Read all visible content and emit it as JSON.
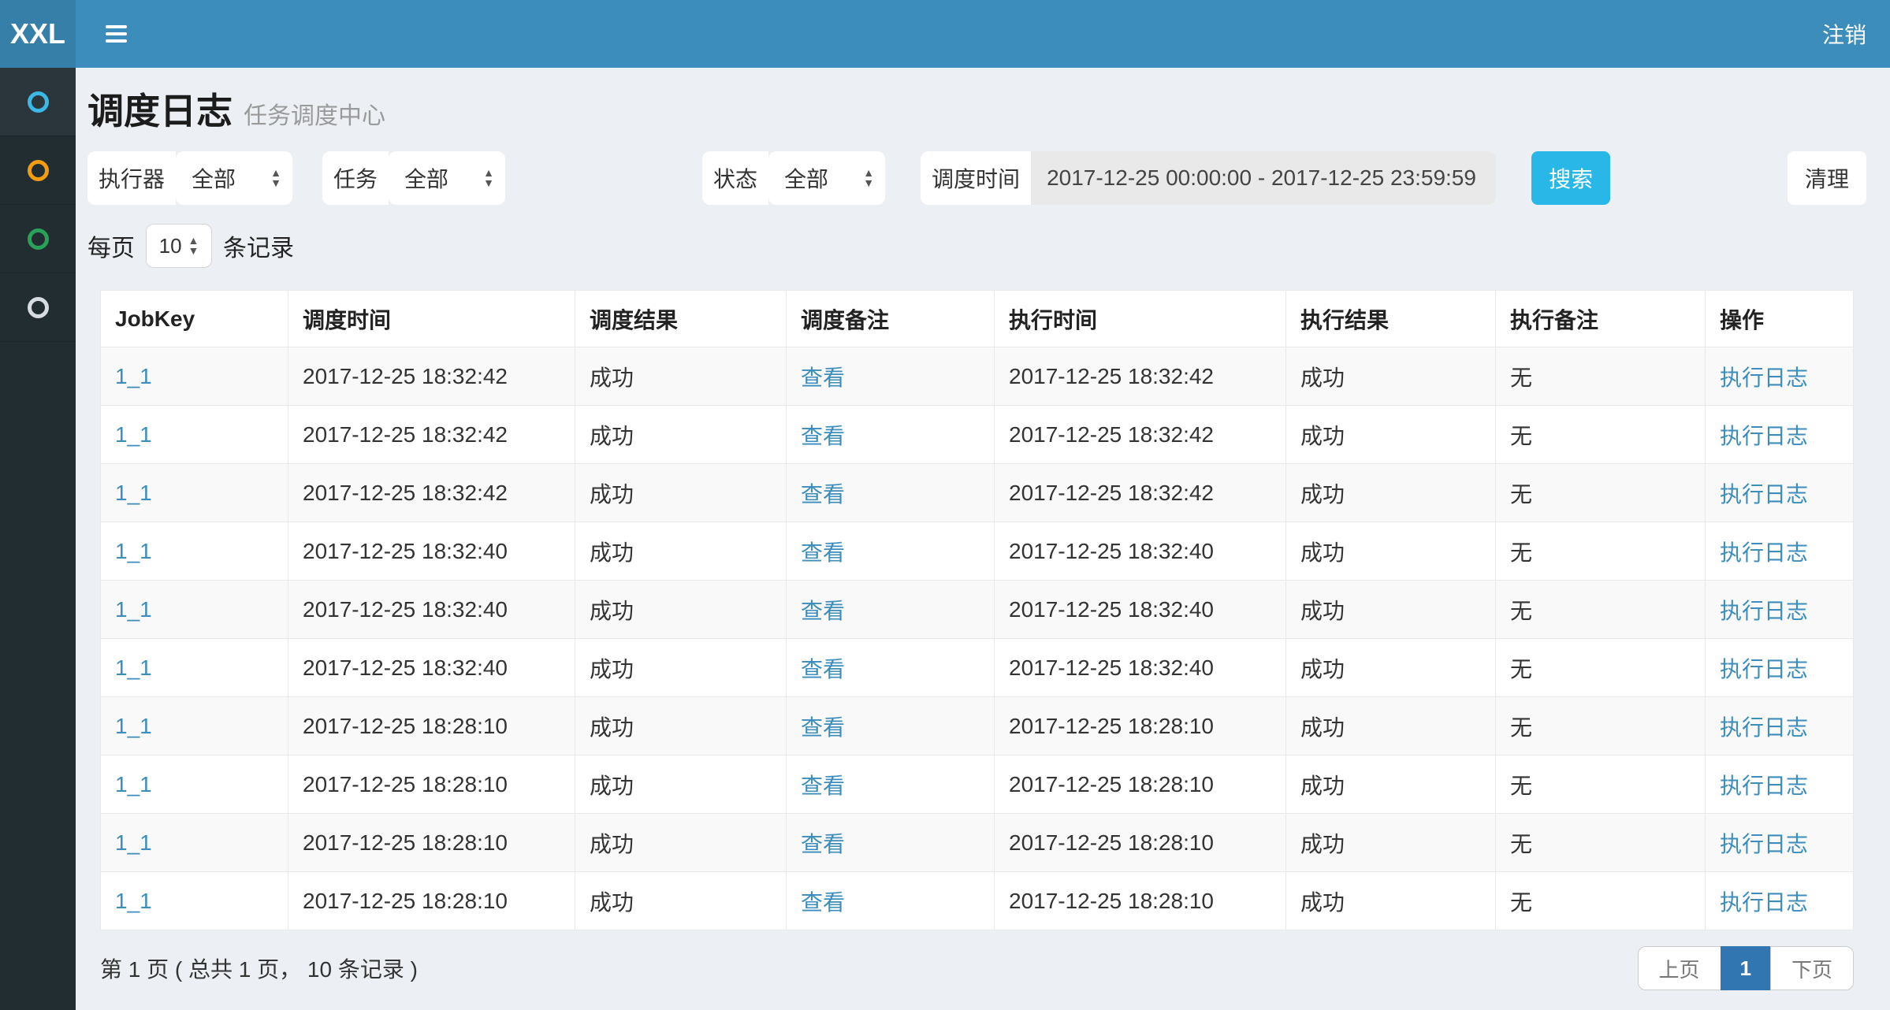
{
  "navbar": {
    "logo": "XXL",
    "logout": "注销"
  },
  "sidebar": {
    "items": [
      {
        "name": "sidebar-item-1",
        "icon": "circle-outline-icon",
        "color": "#3cb8e4",
        "active": true
      },
      {
        "name": "sidebar-item-2",
        "icon": "circle-outline-icon",
        "color": "#f39c12",
        "active": false
      },
      {
        "name": "sidebar-item-3",
        "icon": "circle-outline-icon",
        "color": "#2aa158",
        "active": false
      },
      {
        "name": "sidebar-item-4",
        "icon": "circle-outline-icon",
        "color": "#d7dce2",
        "active": false
      }
    ]
  },
  "header": {
    "title": "调度日志",
    "subtitle": "任务调度中心"
  },
  "filters": {
    "executor_label": "执行器",
    "executor_value": "全部",
    "job_label": "任务",
    "job_value": "全部",
    "status_label": "状态",
    "status_value": "全部",
    "time_label": "调度时间",
    "time_value": "2017-12-25 00:00:00 - 2017-12-25 23:59:59",
    "search_button": "搜索",
    "clear_button": "清理"
  },
  "page_size": {
    "prefix": "每页",
    "value": "10",
    "suffix": "条记录"
  },
  "table": {
    "columns": [
      "JobKey",
      "调度时间",
      "调度结果",
      "调度备注",
      "执行时间",
      "执行结果",
      "执行备注",
      "操作"
    ],
    "rows": [
      {
        "job_key": "1_1",
        "trigger_time": "2017-12-25 18:32:42",
        "trigger_result": "成功",
        "trigger_msg": "查看",
        "handle_time": "2017-12-25 18:32:42",
        "handle_result": "成功",
        "handle_msg": "无",
        "action": "执行日志"
      },
      {
        "job_key": "1_1",
        "trigger_time": "2017-12-25 18:32:42",
        "trigger_result": "成功",
        "trigger_msg": "查看",
        "handle_time": "2017-12-25 18:32:42",
        "handle_result": "成功",
        "handle_msg": "无",
        "action": "执行日志"
      },
      {
        "job_key": "1_1",
        "trigger_time": "2017-12-25 18:32:42",
        "trigger_result": "成功",
        "trigger_msg": "查看",
        "handle_time": "2017-12-25 18:32:42",
        "handle_result": "成功",
        "handle_msg": "无",
        "action": "执行日志"
      },
      {
        "job_key": "1_1",
        "trigger_time": "2017-12-25 18:32:40",
        "trigger_result": "成功",
        "trigger_msg": "查看",
        "handle_time": "2017-12-25 18:32:40",
        "handle_result": "成功",
        "handle_msg": "无",
        "action": "执行日志"
      },
      {
        "job_key": "1_1",
        "trigger_time": "2017-12-25 18:32:40",
        "trigger_result": "成功",
        "trigger_msg": "查看",
        "handle_time": "2017-12-25 18:32:40",
        "handle_result": "成功",
        "handle_msg": "无",
        "action": "执行日志"
      },
      {
        "job_key": "1_1",
        "trigger_time": "2017-12-25 18:32:40",
        "trigger_result": "成功",
        "trigger_msg": "查看",
        "handle_time": "2017-12-25 18:32:40",
        "handle_result": "成功",
        "handle_msg": "无",
        "action": "执行日志"
      },
      {
        "job_key": "1_1",
        "trigger_time": "2017-12-25 18:28:10",
        "trigger_result": "成功",
        "trigger_msg": "查看",
        "handle_time": "2017-12-25 18:28:10",
        "handle_result": "成功",
        "handle_msg": "无",
        "action": "执行日志"
      },
      {
        "job_key": "1_1",
        "trigger_time": "2017-12-25 18:28:10",
        "trigger_result": "成功",
        "trigger_msg": "查看",
        "handle_time": "2017-12-25 18:28:10",
        "handle_result": "成功",
        "handle_msg": "无",
        "action": "执行日志"
      },
      {
        "job_key": "1_1",
        "trigger_time": "2017-12-25 18:28:10",
        "trigger_result": "成功",
        "trigger_msg": "查看",
        "handle_time": "2017-12-25 18:28:10",
        "handle_result": "成功",
        "handle_msg": "无",
        "action": "执行日志"
      },
      {
        "job_key": "1_1",
        "trigger_time": "2017-12-25 18:28:10",
        "trigger_result": "成功",
        "trigger_msg": "查看",
        "handle_time": "2017-12-25 18:28:10",
        "handle_result": "成功",
        "handle_msg": "无",
        "action": "执行日志"
      }
    ]
  },
  "pagination": {
    "summary": "第 1 页 ( 总共 1 页， 10 条记录 )",
    "prev_label": "上页",
    "page": "1",
    "next_label": "下页"
  },
  "colors": {
    "navbar": "#3c8dbc",
    "logo_bg": "#367fa9",
    "sidebar": "#222d32",
    "link": "#3c8dbc",
    "success_text": "#1a9838",
    "search_button": "#29b7e8",
    "pagination_active": "#3276b1"
  }
}
